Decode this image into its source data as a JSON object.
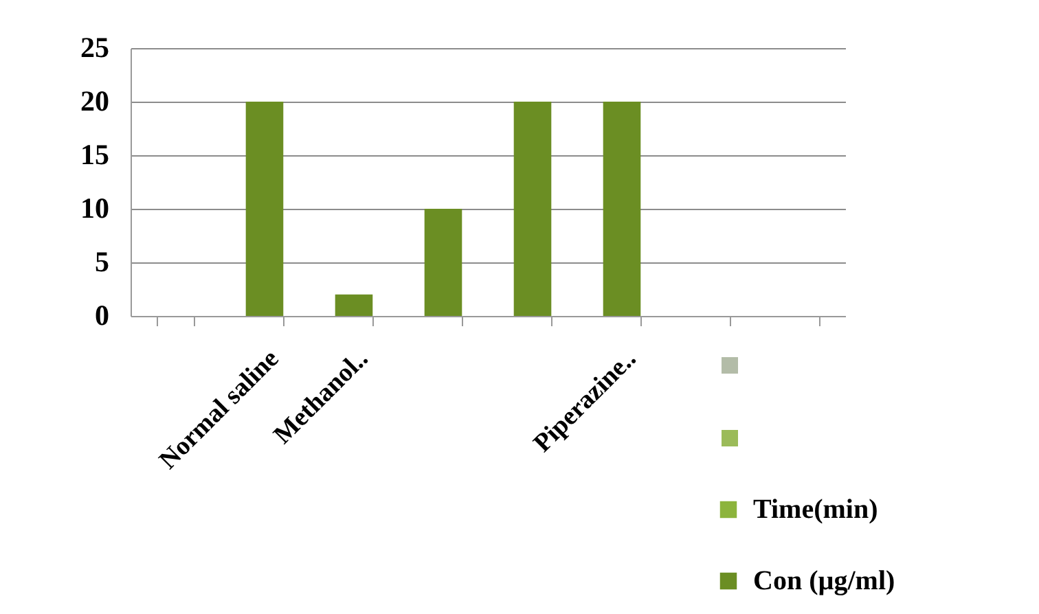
{
  "chart_data": {
    "type": "bar",
    "categories": [
      null,
      "Normal saline",
      "Methanol..",
      null,
      null,
      "Piperazine..",
      null,
      null
    ],
    "series": [
      {
        "name": "Time(min)",
        "color": "#8cb43c",
        "values": [
          null,
          null,
          null,
          null,
          null,
          null,
          null,
          null
        ]
      },
      {
        "name": "Con (µg/ml)",
        "color": "#6b8e23",
        "values": [
          null,
          20,
          2,
          10,
          20,
          20,
          null,
          null
        ]
      }
    ],
    "ylim": [
      0,
      25
    ],
    "yticks": [
      0,
      5,
      10,
      15,
      20,
      25
    ],
    "grid": "y",
    "legend": "bottom right"
  }
}
